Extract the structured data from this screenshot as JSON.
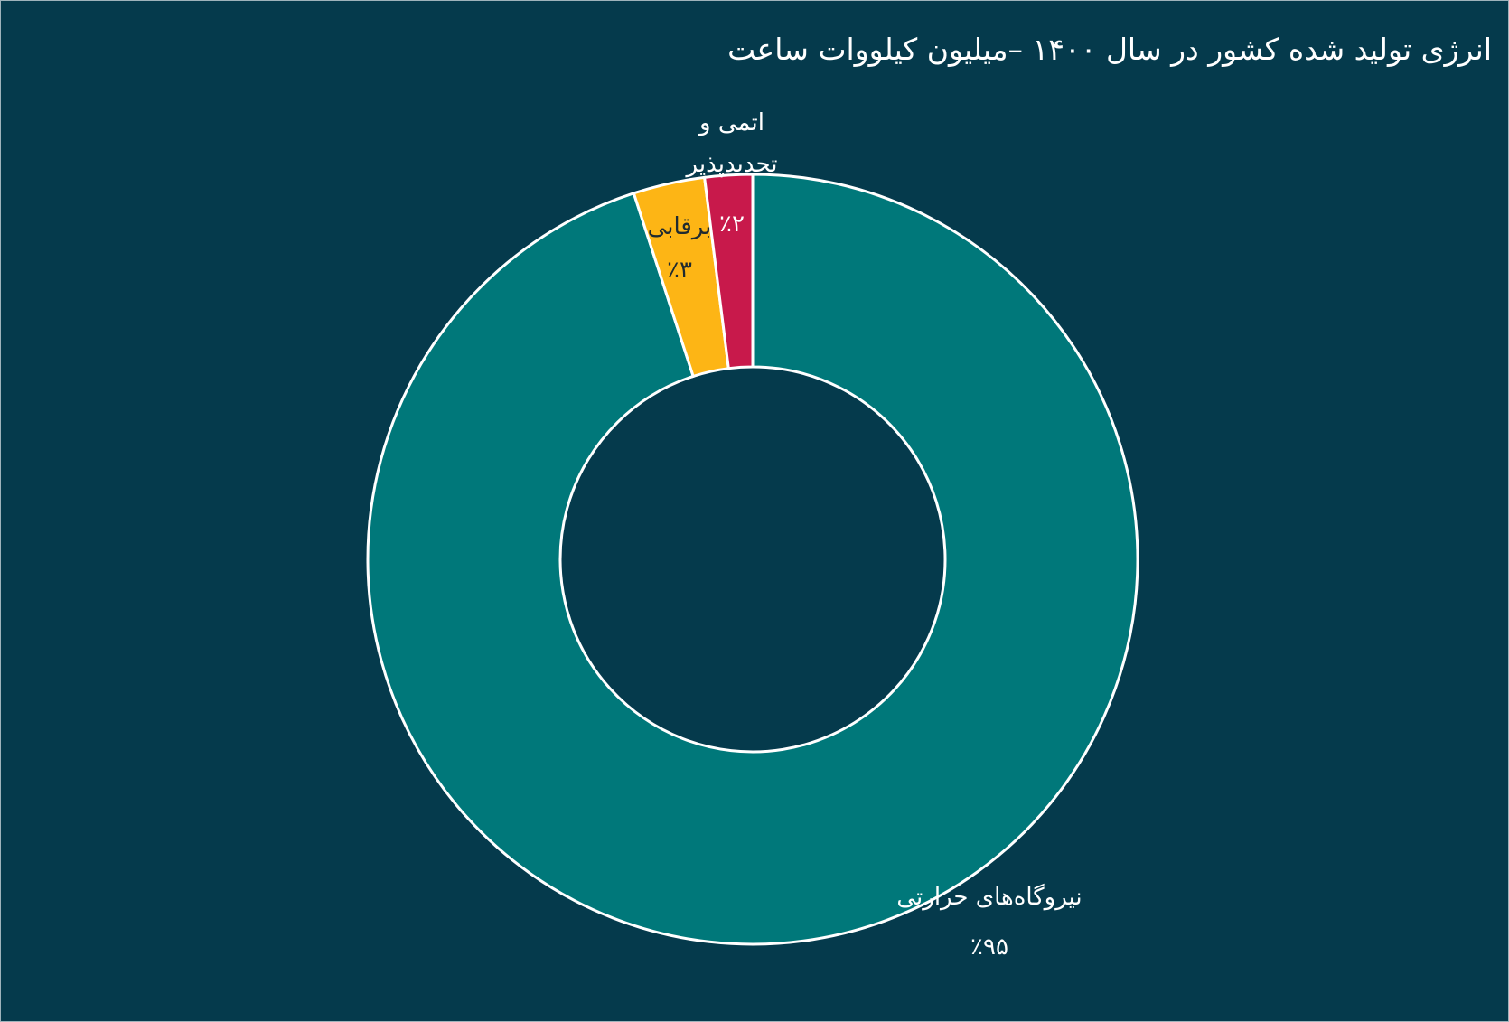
{
  "chart_data": {
    "type": "donut",
    "title": "انرژی تولید شده کشور در سال ۱۴۰۰ –میلیون کیلووات ساعت",
    "categories": [
      "نیروگاه‌های حرارتی",
      "برقابی",
      "اتمی و تجدیدپذیر"
    ],
    "values": [
      95,
      3,
      2
    ],
    "value_labels": [
      "٪۹۵",
      "٪۳",
      "٪۲"
    ],
    "colors": [
      "#00787a",
      "#fdb515",
      "#c8194b"
    ]
  }
}
